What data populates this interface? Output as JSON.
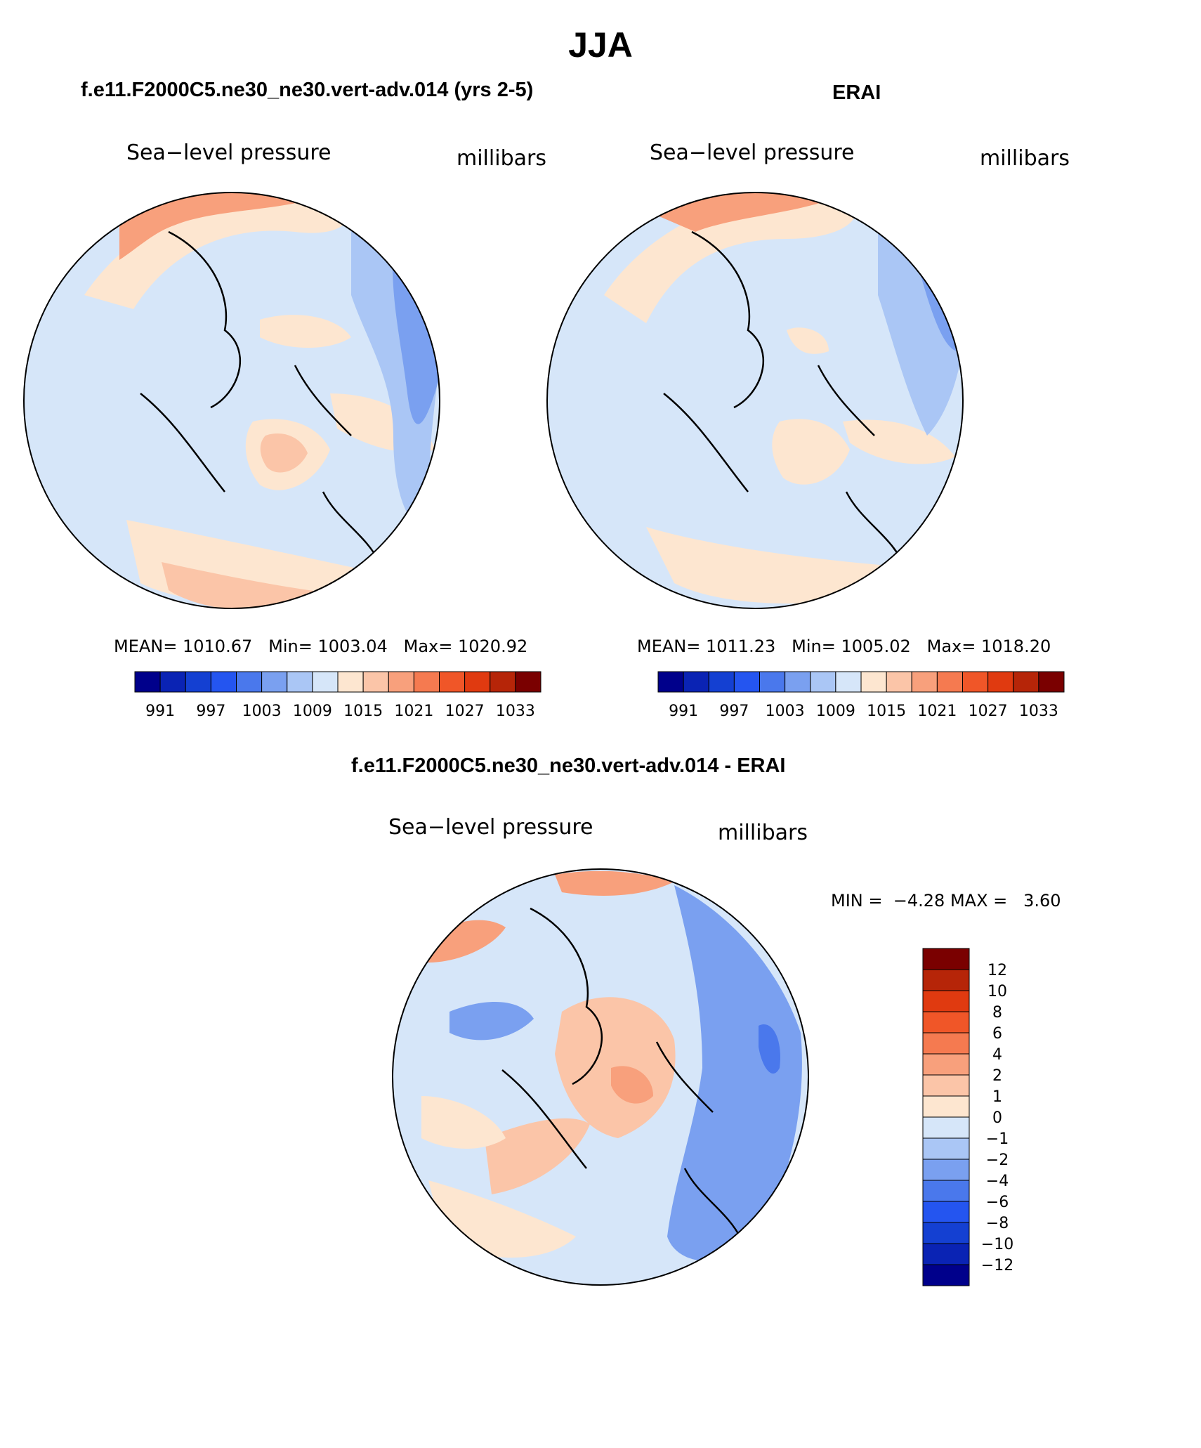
{
  "season": "JJA",
  "panel_model": {
    "title": "f.e11.F2000C5.ne30_ne30.vert-adv.014 (yrs 2-5)",
    "variable": "Sea−level pressure",
    "units": "millibars",
    "stats": {
      "mean_label": "MEAN=",
      "mean": "1010.67",
      "min_label": "Min=",
      "min": "1003.04",
      "max_label": "Max=",
      "max": "1020.92"
    }
  },
  "panel_obs": {
    "title": "ERAI",
    "variable": "Sea−level pressure",
    "units": "millibars",
    "stats": {
      "mean_label": "MEAN=",
      "mean": "1011.23",
      "min_label": "Min=",
      "min": "1005.02",
      "max_label": "Max=",
      "max": "1018.20"
    }
  },
  "panel_diff": {
    "title": "f.e11.F2000C5.ne30_ne30.vert-adv.014 - ERAI",
    "variable": "Sea−level pressure",
    "units": "millibars",
    "minmax": {
      "min_label": "MIN =",
      "min": "−4.28",
      "max_label": "MAX =",
      "max": "3.60"
    }
  },
  "colors": {
    "map_colorbar": [
      "#00008b",
      "#0a23b4",
      "#1440d2",
      "#2455f0",
      "#4a78ec",
      "#7aa0f0",
      "#aac6f5",
      "#d6e6f9",
      "#fde6d0",
      "#fbc5a8",
      "#f8a07c",
      "#f57a50",
      "#f05628",
      "#e03a10",
      "#b62508",
      "#7a0000"
    ],
    "diff_colorbar": [
      "#00008b",
      "#0a23b4",
      "#1440d2",
      "#2455f0",
      "#4a78ec",
      "#7aa0f0",
      "#aac6f5",
      "#d6e6f9",
      "#fde6d0",
      "#fbc5a8",
      "#f8a07c",
      "#f57a50",
      "#f05628",
      "#e03a10",
      "#b62508",
      "#7a0000"
    ]
  },
  "chart_data": [
    {
      "type": "heatmap",
      "title": "f.e11.F2000C5.ne30_ne30.vert-adv.014 (yrs 2-5)",
      "subtitle": "Sea−level pressure",
      "units": "millibars",
      "projection": "north polar stereographic",
      "stats": {
        "mean": 1010.67,
        "min": 1003.04,
        "max": 1020.92
      },
      "colorbar_levels": [
        991,
        994,
        997,
        1000,
        1003,
        1006,
        1009,
        1012,
        1015,
        1018,
        1021,
        1024,
        1027,
        1030,
        1033
      ],
      "colorbar_tick_labels": [
        "991",
        "997",
        "1003",
        "1009",
        "1015",
        "1021",
        "1027",
        "1033"
      ]
    },
    {
      "type": "heatmap",
      "title": "ERAI",
      "subtitle": "Sea−level pressure",
      "units": "millibars",
      "projection": "north polar stereographic",
      "stats": {
        "mean": 1011.23,
        "min": 1005.02,
        "max": 1018.2
      },
      "colorbar_levels": [
        991,
        994,
        997,
        1000,
        1003,
        1006,
        1009,
        1012,
        1015,
        1018,
        1021,
        1024,
        1027,
        1030,
        1033
      ],
      "colorbar_tick_labels": [
        "991",
        "997",
        "1003",
        "1009",
        "1015",
        "1021",
        "1027",
        "1033"
      ]
    },
    {
      "type": "heatmap",
      "title": "f.e11.F2000C5.ne30_ne30.vert-adv.014 - ERAI",
      "subtitle": "Sea−level pressure",
      "units": "millibars",
      "projection": "north polar stereographic",
      "stats": {
        "min": -4.28,
        "max": 3.6
      },
      "colorbar_levels": [
        -12,
        -10,
        -8,
        -6,
        -4,
        -2,
        -1,
        0,
        1,
        2,
        4,
        6,
        8,
        10,
        12
      ],
      "colorbar_tick_labels": [
        "12",
        "10",
        "8",
        "6",
        "4",
        "2",
        "1",
        "0",
        "−1",
        "−2",
        "−4",
        "−6",
        "−8",
        "−10",
        "−12"
      ]
    }
  ]
}
